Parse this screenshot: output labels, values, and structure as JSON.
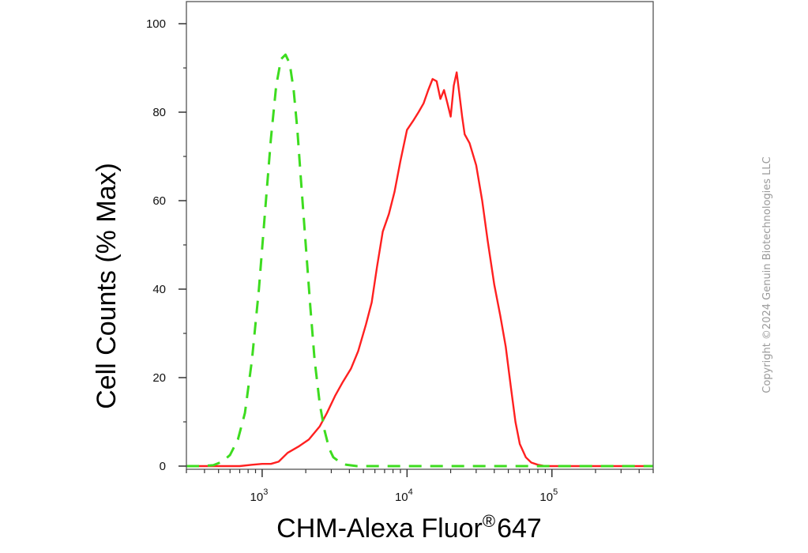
{
  "chart_data": {
    "type": "line",
    "title": "",
    "xlabel": "CHM-Alexa Fluor",
    "xlabel_mark": "®",
    "xlabel_suffix": "647",
    "ylabel": "Cell Counts (% Max)",
    "x_scale": "log",
    "xlim": [
      300,
      500000
    ],
    "ylim": [
      0,
      105
    ],
    "y_ticks": [
      0,
      20,
      40,
      60,
      80,
      100
    ],
    "x_major_ticks": [
      {
        "value": 1000,
        "base": "10",
        "exp": "3"
      },
      {
        "value": 10000,
        "base": "10",
        "exp": "4"
      },
      {
        "value": 100000,
        "base": "10",
        "exp": "5"
      }
    ],
    "grid": false,
    "legend": "none",
    "series": [
      {
        "color": "#ff2020",
        "style": "solid",
        "x": [
          300,
          500,
          700,
          850,
          1000,
          1150,
          1300,
          1500,
          1800,
          2100,
          2500,
          2800,
          3200,
          3600,
          4100,
          4600,
          5200,
          5700,
          6200,
          6800,
          7500,
          8200,
          9000,
          10000,
          11000,
          12000,
          13000,
          14000,
          15000,
          16000,
          17000,
          18000,
          19000,
          20000,
          21000,
          22000,
          23000,
          24000,
          25000,
          27000,
          30000,
          33000,
          36000,
          40000,
          44000,
          48000,
          52000,
          56000,
          60000,
          66000,
          72000,
          80000,
          90000,
          100000,
          150000,
          500000
        ],
        "y": [
          0,
          0,
          0,
          0.3,
          0.5,
          0.5,
          1,
          3,
          4.5,
          6,
          9,
          12,
          16,
          19,
          22,
          26,
          32,
          37,
          45,
          53,
          57,
          62,
          69,
          76,
          78,
          80,
          82,
          85,
          87.5,
          87,
          83,
          85,
          82,
          79,
          86,
          89,
          84,
          79,
          75,
          73,
          68,
          60,
          51,
          41,
          34,
          27,
          18,
          10,
          5,
          2,
          0.8,
          0.3,
          0,
          0,
          0,
          0
        ]
      },
      {
        "color": "#3ddc1f",
        "style": "dashed",
        "x": [
          300,
          380,
          460,
          530,
          600,
          680,
          760,
          850,
          950,
          1050,
          1150,
          1250,
          1350,
          1450,
          1550,
          1650,
          1750,
          1850,
          2000,
          2150,
          2300,
          2500,
          2700,
          2900,
          3100,
          3400,
          3800,
          4500,
          500000
        ],
        "y": [
          0,
          0,
          0.2,
          1,
          2.5,
          6,
          12,
          24,
          40,
          58,
          74,
          86,
          92,
          93,
          91,
          85,
          76,
          65,
          50,
          36,
          24,
          14,
          8,
          4,
          2,
          1,
          0.3,
          0,
          0
        ]
      }
    ],
    "watermark": "Copyright ©2024 Genuin Biotechnologies LLC"
  }
}
